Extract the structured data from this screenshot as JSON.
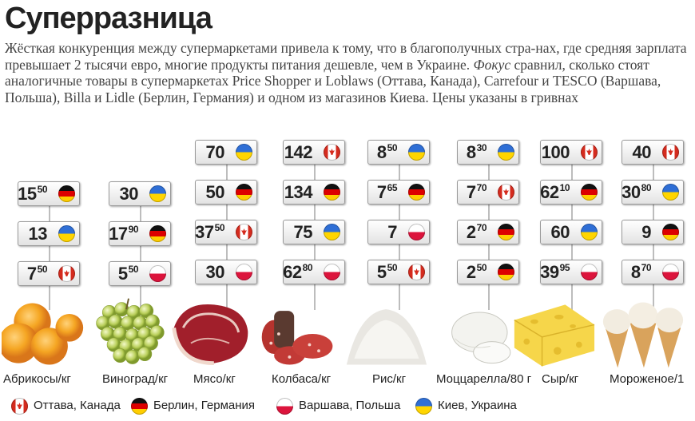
{
  "title": "Суперразница",
  "intro": {
    "part1": "Жёсткая конкуренция между супермаркетами привела к тому, что в благополучных стра-нах, где средняя зарплата превышает 2 тысячи евро, многие продукты питания дешевле, чем в Украине. ",
    "focus": "Фокус",
    "part2": " сравнил, сколько стоят аналогичные товары в супермаркетах Price Shopper и Loblaws (Оттава, Канада), Carrefour и TESCO (Варшава, Польша), Billa и Lidle (Берлин, Германия) и одном из магазинов Киева. Цены указаны в гривнах"
  },
  "colors": {
    "canada": "#d52b1e",
    "germany_black": "#111111",
    "germany_red": "#dd0000",
    "germany_gold": "#ffce00",
    "poland": "#dc143c",
    "ukraine_blue": "#2f6fd6",
    "ukraine_yellow": "#ffd500"
  },
  "legend": [
    {
      "country": "canada",
      "label": "Оттава, Канада",
      "icon": "canada-flag-icon"
    },
    {
      "country": "germany",
      "label": "Берлин, Германия",
      "icon": "germany-flag-icon"
    },
    {
      "country": "poland",
      "label": "Варшава, Польша",
      "icon": "poland-flag-icon"
    },
    {
      "country": "ukraine",
      "label": "Киев, Украина",
      "icon": "ukraine-flag-icon"
    }
  ],
  "chart_data": {
    "type": "table",
    "unit": "грн",
    "categories": [
      "Абрикосы/кг",
      "Виноград/кг",
      "Мясо/кг",
      "Колбаса/кг",
      "Рис/кг",
      "Моццарелла/80 г",
      "Сыр/кг",
      "Мороженое/1"
    ],
    "items": [
      {
        "category": "Абрикосы/кг",
        "image": "apricots",
        "prices": [
          {
            "country": "germany",
            "int": "15",
            "frac": "50",
            "value": 15.5
          },
          {
            "country": "ukraine",
            "int": "13",
            "frac": "",
            "value": 13
          },
          {
            "country": "canada",
            "int": "7",
            "frac": "50",
            "value": 7.5
          }
        ]
      },
      {
        "category": "Виноград/кг",
        "image": "grapes",
        "prices": [
          {
            "country": "ukraine",
            "int": "30",
            "frac": "",
            "value": 30
          },
          {
            "country": "germany",
            "int": "17",
            "frac": "90",
            "value": 17.9
          },
          {
            "country": "poland",
            "int": "5",
            "frac": "50",
            "value": 5.5
          }
        ]
      },
      {
        "category": "Мясо/кг",
        "image": "meat",
        "prices": [
          {
            "country": "ukraine",
            "int": "70",
            "frac": "",
            "value": 70
          },
          {
            "country": "germany",
            "int": "50",
            "frac": "",
            "value": 50
          },
          {
            "country": "canada",
            "int": "37",
            "frac": "50",
            "value": 37.5
          },
          {
            "country": "poland",
            "int": "30",
            "frac": "",
            "value": 30
          }
        ]
      },
      {
        "category": "Колбаса/кг",
        "image": "sausage",
        "prices": [
          {
            "country": "canada",
            "int": "142",
            "frac": "",
            "value": 142
          },
          {
            "country": "germany",
            "int": "134",
            "frac": "",
            "value": 134
          },
          {
            "country": "ukraine",
            "int": "75",
            "frac": "",
            "value": 75
          },
          {
            "country": "poland",
            "int": "62",
            "frac": "80",
            "value": 62.8
          }
        ]
      },
      {
        "category": "Рис/кг",
        "image": "rice",
        "prices": [
          {
            "country": "ukraine",
            "int": "8",
            "frac": "50",
            "value": 8.5
          },
          {
            "country": "germany",
            "int": "7",
            "frac": "65",
            "value": 7.65
          },
          {
            "country": "poland",
            "int": "7",
            "frac": "",
            "value": 7
          },
          {
            "country": "canada",
            "int": "5",
            "frac": "50",
            "value": 5.5
          }
        ]
      },
      {
        "category": "Моццарелла/80 г",
        "image": "mozzarella",
        "prices": [
          {
            "country": "ukraine",
            "int": "8",
            "frac": "30",
            "value": 8.3
          },
          {
            "country": "canada",
            "int": "7",
            "frac": "70",
            "value": 7.7
          },
          {
            "country": "germany",
            "int": "2",
            "frac": "70",
            "value": 2.7
          },
          {
            "country": "germany",
            "int": "2",
            "frac": "50",
            "value": 2.5
          }
        ]
      },
      {
        "category": "Сыр/кг",
        "image": "cheese",
        "prices": [
          {
            "country": "canada",
            "int": "100",
            "frac": "",
            "value": 100
          },
          {
            "country": "germany",
            "int": "62",
            "frac": "10",
            "value": 62.1
          },
          {
            "country": "ukraine",
            "int": "60",
            "frac": "",
            "value": 60
          },
          {
            "country": "poland",
            "int": "39",
            "frac": "95",
            "value": 39.95
          }
        ]
      },
      {
        "category": "Мороженое/1",
        "image": "ice-cream",
        "prices": [
          {
            "country": "canada",
            "int": "40",
            "frac": "",
            "value": 40
          },
          {
            "country": "ukraine",
            "int": "30",
            "frac": "80",
            "value": 30.8
          },
          {
            "country": "germany",
            "int": "9",
            "frac": "",
            "value": 9
          },
          {
            "country": "poland",
            "int": "8",
            "frac": "70",
            "value": 8.7
          }
        ]
      }
    ]
  }
}
